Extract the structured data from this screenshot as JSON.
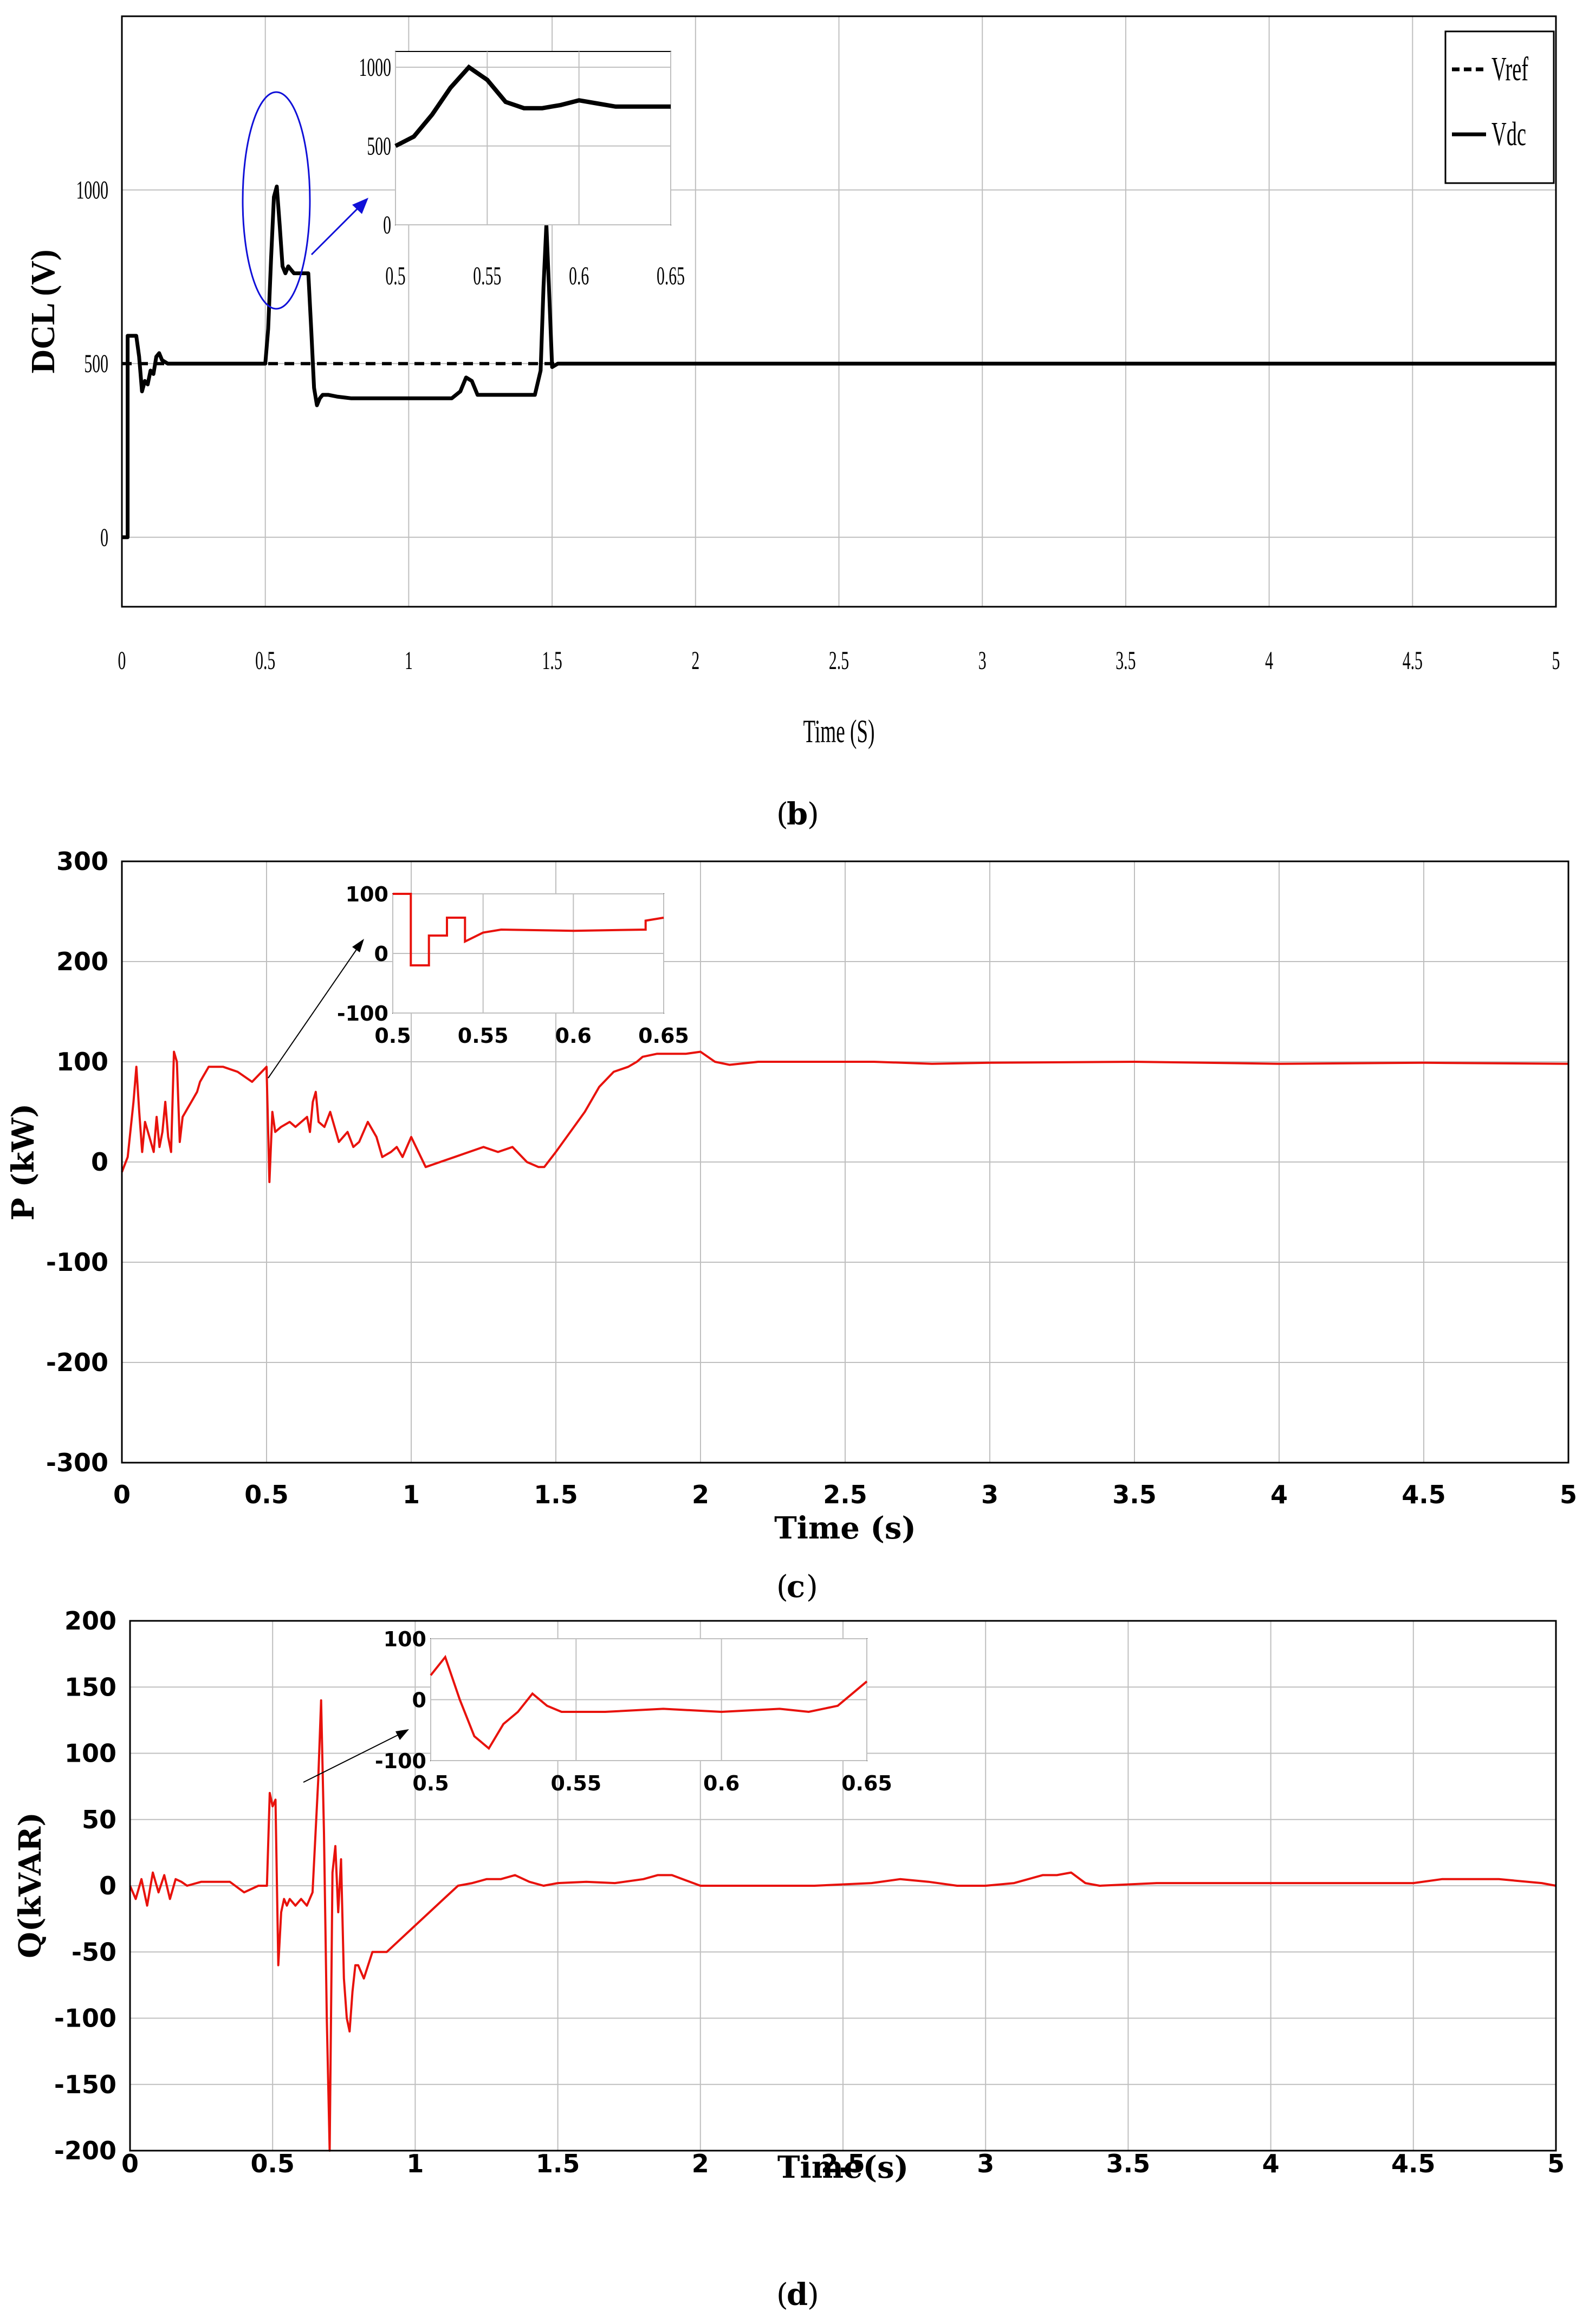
{
  "panels": [
    {
      "key": "b",
      "caption_letter": "b",
      "font": "condensed"
    },
    {
      "key": "c",
      "caption_letter": "c",
      "font": "bold"
    },
    {
      "key": "d",
      "caption_letter": "d",
      "font": "bold"
    }
  ],
  "colors": {
    "black": "#000000",
    "red": "#e8120c",
    "blue": "#1010d8",
    "grid": "#bfbfbf"
  },
  "chart_data": [
    {
      "type": "line",
      "panel": "b",
      "xlabel": "Time (S)",
      "ylabel": "DCL (V)",
      "xlim": [
        0,
        5
      ],
      "ylim": [
        -200,
        1500
      ],
      "xticks": [
        "0",
        "0.5",
        "1",
        "1.5",
        "2",
        "2.5",
        "3",
        "3.5",
        "4",
        "4.5",
        "5"
      ],
      "yticks": [
        "0",
        "500",
        "1000"
      ],
      "grid": true,
      "legend": "top-right",
      "series": [
        {
          "name": "Vref",
          "style": "dashed",
          "x": [
            0,
            5
          ],
          "y": [
            500,
            500
          ]
        },
        {
          "name": "Vdc",
          "style": "solid",
          "x": [
            0,
            0.01,
            0.02,
            0.02,
            0.05,
            0.06,
            0.07,
            0.08,
            0.09,
            0.1,
            0.11,
            0.12,
            0.13,
            0.14,
            0.16,
            0.18,
            0.2,
            0.3,
            0.4,
            0.5,
            0.51,
            0.52,
            0.53,
            0.54,
            0.55,
            0.56,
            0.57,
            0.58,
            0.59,
            0.6,
            0.62,
            0.65,
            0.66,
            0.67,
            0.68,
            0.69,
            0.7,
            0.72,
            0.75,
            0.8,
            0.9,
            1.0,
            1.1,
            1.15,
            1.18,
            1.2,
            1.22,
            1.24,
            1.26,
            1.3,
            1.4,
            1.44,
            1.46,
            1.47,
            1.48,
            1.49,
            1.5,
            1.52,
            1.55,
            1.6,
            1.8,
            2.0,
            3.0,
            4.0,
            5.0
          ],
          "y": [
            0,
            0,
            0,
            580,
            580,
            520,
            420,
            450,
            440,
            480,
            470,
            520,
            530,
            510,
            500,
            500,
            500,
            500,
            500,
            500,
            600,
            800,
            980,
            1010,
            900,
            780,
            760,
            780,
            770,
            760,
            760,
            760,
            600,
            430,
            380,
            400,
            410,
            410,
            405,
            400,
            400,
            400,
            400,
            400,
            420,
            460,
            450,
            410,
            410,
            410,
            410,
            410,
            480,
            720,
            900,
            700,
            490,
            500,
            500,
            500,
            500,
            500,
            500,
            500,
            500
          ]
        }
      ],
      "inset": {
        "xlim": [
          0.5,
          0.65
        ],
        "ylim": [
          0,
          1100
        ],
        "xticks": [
          "0.5",
          "0.55",
          "0.6",
          "0.65"
        ],
        "yticks": [
          "0",
          "500",
          "1000"
        ],
        "x": [
          0.5,
          0.51,
          0.52,
          0.53,
          0.54,
          0.55,
          0.56,
          0.57,
          0.58,
          0.59,
          0.6,
          0.61,
          0.62,
          0.63,
          0.64,
          0.65
        ],
        "y": [
          500,
          560,
          700,
          870,
          1000,
          920,
          780,
          740,
          740,
          760,
          790,
          770,
          750,
          750,
          750,
          750
        ]
      }
    },
    {
      "type": "line",
      "panel": "c",
      "xlabel": "Time (s)",
      "ylabel": "P (kW)",
      "xlim": [
        0,
        5
      ],
      "ylim": [
        -300,
        300
      ],
      "xticks": [
        "0",
        "0.5",
        "1",
        "1.5",
        "2",
        "2.5",
        "3",
        "3.5",
        "4",
        "4.5",
        "5"
      ],
      "yticks": [
        "-300",
        "-200",
        "-100",
        "0",
        "100",
        "200",
        "300"
      ],
      "grid": true,
      "series": [
        {
          "name": "",
          "x": [
            0,
            0.02,
            0.04,
            0.05,
            0.06,
            0.07,
            0.08,
            0.09,
            0.1,
            0.11,
            0.12,
            0.13,
            0.14,
            0.15,
            0.16,
            0.17,
            0.18,
            0.19,
            0.2,
            0.21,
            0.22,
            0.23,
            0.24,
            0.25,
            0.26,
            0.27,
            0.28,
            0.29,
            0.3,
            0.35,
            0.4,
            0.45,
            0.5,
            0.51,
            0.52,
            0.53,
            0.55,
            0.58,
            0.6,
            0.62,
            0.64,
            0.65,
            0.66,
            0.67,
            0.68,
            0.7,
            0.72,
            0.74,
            0.75,
            0.78,
            0.8,
            0.82,
            0.85,
            0.88,
            0.9,
            0.93,
            0.95,
            0.97,
            1.0,
            1.05,
            1.1,
            1.15,
            1.2,
            1.25,
            1.3,
            1.35,
            1.4,
            1.44,
            1.46,
            1.5,
            1.55,
            1.6,
            1.65,
            1.7,
            1.75,
            1.78,
            1.8,
            1.85,
            1.9,
            1.95,
            2.0,
            2.05,
            2.1,
            2.2,
            2.5,
            2.6,
            2.8,
            3.0,
            3.5,
            4.0,
            4.5,
            5.0
          ],
          "y": [
            -10,
            5,
            60,
            95,
            50,
            10,
            40,
            30,
            20,
            10,
            45,
            15,
            30,
            60,
            25,
            10,
            110,
            100,
            20,
            45,
            50,
            55,
            60,
            65,
            70,
            80,
            85,
            90,
            95,
            95,
            90,
            80,
            95,
            -20,
            50,
            30,
            35,
            40,
            35,
            40,
            45,
            30,
            60,
            70,
            40,
            35,
            50,
            30,
            20,
            30,
            15,
            20,
            40,
            25,
            5,
            10,
            15,
            5,
            25,
            -5,
            0,
            5,
            10,
            15,
            10,
            15,
            0,
            -5,
            -5,
            10,
            30,
            50,
            75,
            90,
            95,
            100,
            105,
            108,
            108,
            108,
            110,
            100,
            97,
            100,
            100,
            100,
            98,
            99,
            100,
            98,
            99,
            98
          ]
        }
      ],
      "inset": {
        "xlim": [
          0.5,
          0.65
        ],
        "ylim": [
          -100,
          100
        ],
        "xticks": [
          "0.5",
          "0.55",
          "0.6",
          "0.65"
        ],
        "yticks": [
          "-100",
          "0",
          "100"
        ],
        "x": [
          0.5,
          0.51,
          0.51,
          0.52,
          0.52,
          0.53,
          0.53,
          0.54,
          0.54,
          0.55,
          0.56,
          0.6,
          0.64,
          0.64,
          0.65
        ],
        "y": [
          100,
          100,
          -20,
          -20,
          30,
          30,
          60,
          60,
          20,
          35,
          40,
          38,
          40,
          55,
          60
        ]
      }
    },
    {
      "type": "line",
      "panel": "d",
      "xlabel": "Time(s)",
      "ylabel": "Q(kVAR)",
      "xlim": [
        0,
        5
      ],
      "ylim": [
        -200,
        200
      ],
      "xticks": [
        "0",
        "0.5",
        "1",
        "1.5",
        "2",
        "2.5",
        "3",
        "3.5",
        "4",
        "4.5",
        "5"
      ],
      "yticks": [
        "-200",
        "-150",
        "-100",
        "-50",
        "0",
        "50",
        "100",
        "150",
        "200"
      ],
      "grid": true,
      "series": [
        {
          "name": "",
          "x": [
            0,
            0.02,
            0.04,
            0.06,
            0.08,
            0.1,
            0.12,
            0.14,
            0.16,
            0.18,
            0.2,
            0.25,
            0.3,
            0.35,
            0.4,
            0.45,
            0.48,
            0.49,
            0.5,
            0.51,
            0.52,
            0.53,
            0.54,
            0.55,
            0.56,
            0.58,
            0.6,
            0.62,
            0.64,
            0.66,
            0.67,
            0.68,
            0.69,
            0.7,
            0.71,
            0.72,
            0.73,
            0.74,
            0.75,
            0.76,
            0.77,
            0.78,
            0.79,
            0.8,
            0.82,
            0.85,
            0.9,
            0.95,
            1.0,
            1.05,
            1.1,
            1.15,
            1.2,
            1.25,
            1.3,
            1.35,
            1.4,
            1.45,
            1.5,
            1.6,
            1.7,
            1.8,
            1.85,
            1.9,
            1.95,
            2.0,
            2.2,
            2.4,
            2.6,
            2.7,
            2.8,
            2.9,
            3.0,
            3.1,
            3.2,
            3.25,
            3.3,
            3.35,
            3.4,
            3.6,
            3.8,
            4.0,
            4.2,
            4.4,
            4.5,
            4.6,
            4.8,
            4.95,
            5.0
          ],
          "y": [
            0,
            -10,
            5,
            -15,
            10,
            -5,
            8,
            -10,
            5,
            3,
            0,
            3,
            3,
            3,
            -5,
            0,
            0,
            70,
            60,
            65,
            -60,
            -20,
            -10,
            -15,
            -10,
            -15,
            -10,
            -15,
            -5,
            80,
            140,
            40,
            -100,
            -200,
            10,
            30,
            -20,
            20,
            -70,
            -100,
            -110,
            -80,
            -60,
            -60,
            -70,
            -50,
            -50,
            -40,
            -30,
            -20,
            -10,
            0,
            2,
            5,
            5,
            8,
            3,
            0,
            2,
            3,
            2,
            5,
            8,
            8,
            4,
            0,
            0,
            0,
            2,
            5,
            3,
            0,
            0,
            2,
            8,
            8,
            10,
            2,
            0,
            2,
            2,
            2,
            2,
            2,
            2,
            5,
            5,
            2,
            0
          ]
        }
      ],
      "inset": {
        "xlim": [
          0.5,
          0.65
        ],
        "ylim": [
          -100,
          100
        ],
        "xticks": [
          "0.5",
          "0.55",
          "0.6",
          "0.65"
        ],
        "yticks": [
          "-100",
          "0",
          "100"
        ],
        "x": [
          0.5,
          0.505,
          0.51,
          0.515,
          0.52,
          0.525,
          0.53,
          0.535,
          0.54,
          0.545,
          0.55,
          0.56,
          0.58,
          0.6,
          0.62,
          0.63,
          0.64,
          0.645,
          0.65
        ],
        "y": [
          40,
          70,
          0,
          -60,
          -80,
          -40,
          -20,
          10,
          -10,
          -20,
          -20,
          -20,
          -15,
          -20,
          -15,
          -20,
          -10,
          10,
          30
        ]
      }
    }
  ]
}
